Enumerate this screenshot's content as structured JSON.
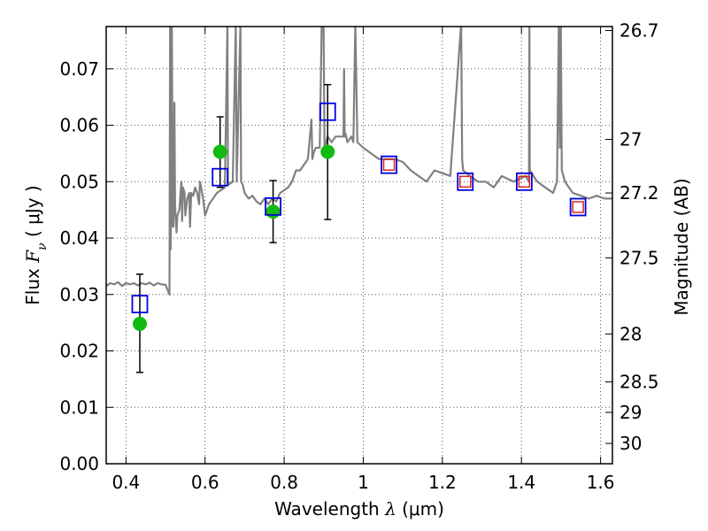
{
  "chart_data": {
    "type": "scatter",
    "xlabel": {
      "prefix": "Wavelength  ",
      "math": "λ",
      "suffix": " (μm)"
    },
    "ylabel": {
      "prefix": "Flux  ",
      "math": "F",
      "sub": "ν",
      "suffix": "  ( μJy )"
    },
    "y2label": "Magnitude (AB)",
    "xlim": [
      0.35,
      1.63
    ],
    "ylim": [
      0.0,
      0.0775
    ],
    "grid": true,
    "grid_style": "dotted",
    "x_ticks": [
      {
        "value": 0.4,
        "label": "0.4"
      },
      {
        "value": 0.6,
        "label": "0.6"
      },
      {
        "value": 0.8,
        "label": "0.8"
      },
      {
        "value": 1.0,
        "label": "1"
      },
      {
        "value": 1.2,
        "label": "1.2"
      },
      {
        "value": 1.4,
        "label": "1.4"
      },
      {
        "value": 1.6,
        "label": "1.6"
      }
    ],
    "y_ticks": [
      {
        "value": 0.0,
        "label": "0.00"
      },
      {
        "value": 0.01,
        "label": "0.01"
      },
      {
        "value": 0.02,
        "label": "0.02"
      },
      {
        "value": 0.03,
        "label": "0.03"
      },
      {
        "value": 0.04,
        "label": "0.04"
      },
      {
        "value": 0.05,
        "label": "0.05"
      },
      {
        "value": 0.06,
        "label": "0.06"
      },
      {
        "value": 0.07,
        "label": "0.07"
      }
    ],
    "y2_ticks": [
      {
        "label": "26.7",
        "flux": 0.0768
      },
      {
        "label": "27",
        "flux": 0.0575
      },
      {
        "label": "27.2",
        "flux": 0.048
      },
      {
        "label": "27.5",
        "flux": 0.0365
      },
      {
        "label": "28",
        "flux": 0.023
      },
      {
        "label": "28.5",
        "flux": 0.0145
      },
      {
        "label": "29",
        "flux": 0.0091
      },
      {
        "label": "30",
        "flux": 0.0036
      }
    ],
    "colors": {
      "spectrum": "#808080",
      "observed": "#11bb11",
      "model": "#0000dd",
      "model_inner": "#dd2222",
      "errorbar": "#000000",
      "grid": "#555555"
    },
    "series": [
      {
        "kind": "spectrum",
        "x": [
          0.35,
          0.36,
          0.37,
          0.38,
          0.39,
          0.4,
          0.41,
          0.42,
          0.43,
          0.44,
          0.45,
          0.46,
          0.47,
          0.48,
          0.49,
          0.5,
          0.51,
          0.5115,
          0.513,
          0.514,
          0.515,
          0.516,
          0.518,
          0.52,
          0.5225,
          0.524,
          0.526,
          0.528,
          0.53,
          0.535,
          0.54,
          0.542,
          0.544,
          0.548,
          0.55,
          0.555,
          0.56,
          0.562,
          0.565,
          0.57,
          0.575,
          0.58,
          0.585,
          0.587,
          0.59,
          0.595,
          0.6,
          0.61,
          0.62,
          0.63,
          0.64,
          0.65,
          0.6565,
          0.658,
          0.66,
          0.67,
          0.6775,
          0.68,
          0.6895,
          0.691,
          0.695,
          0.7,
          0.71,
          0.72,
          0.73,
          0.74,
          0.75,
          0.76,
          0.77,
          0.78,
          0.79,
          0.8,
          0.81,
          0.82,
          0.83,
          0.84,
          0.85,
          0.86,
          0.869,
          0.8715,
          0.874,
          0.88,
          0.89,
          0.895,
          0.8995,
          0.902,
          0.91,
          0.92,
          0.93,
          0.95,
          0.9515,
          0.953,
          0.955,
          0.96,
          0.97,
          0.975,
          0.98,
          0.985,
          1.0,
          1.02,
          1.04,
          1.06,
          1.08,
          1.1,
          1.12,
          1.14,
          1.16,
          1.18,
          1.2,
          1.22,
          1.2475,
          1.25,
          1.2525,
          1.27,
          1.29,
          1.31,
          1.33,
          1.35,
          1.38,
          1.41,
          1.419,
          1.42,
          1.421,
          1.44,
          1.46,
          1.48,
          1.49,
          1.4945,
          1.497,
          1.4995,
          1.502,
          1.51,
          1.52,
          1.53,
          1.55,
          1.57,
          1.59,
          1.61,
          1.63
        ],
        "y": [
          0.0315,
          0.032,
          0.0318,
          0.0322,
          0.0315,
          0.032,
          0.0318,
          0.032,
          0.0316,
          0.032,
          0.0318,
          0.0321,
          0.0316,
          0.032,
          0.0318,
          0.0317,
          0.03,
          0.078,
          0.038,
          0.045,
          0.042,
          0.078,
          0.046,
          0.042,
          0.064,
          0.046,
          0.043,
          0.041,
          0.044,
          0.045,
          0.05,
          0.043,
          0.049,
          0.048,
          0.044,
          0.047,
          0.048,
          0.042,
          0.048,
          0.0475,
          0.049,
          0.048,
          0.046,
          0.05,
          0.049,
          0.047,
          0.044,
          0.046,
          0.047,
          0.048,
          0.0485,
          0.049,
          0.078,
          0.05,
          0.0495,
          0.05,
          0.078,
          0.05,
          0.078,
          0.05,
          0.0495,
          0.048,
          0.047,
          0.0475,
          0.0465,
          0.046,
          0.047,
          0.046,
          0.047,
          0.0465,
          0.048,
          0.0485,
          0.049,
          0.05,
          0.052,
          0.052,
          0.053,
          0.054,
          0.061,
          0.054,
          0.055,
          0.056,
          0.056,
          0.078,
          0.078,
          0.056,
          0.058,
          0.057,
          0.058,
          0.058,
          0.07,
          0.058,
          0.0585,
          0.057,
          0.058,
          0.057,
          0.078,
          0.057,
          0.056,
          0.055,
          0.054,
          0.054,
          0.054,
          0.0535,
          0.052,
          0.051,
          0.05,
          0.052,
          0.0515,
          0.051,
          0.078,
          0.054,
          0.052,
          0.051,
          0.05,
          0.05,
          0.049,
          0.051,
          0.05,
          0.051,
          0.05,
          0.078,
          0.052,
          0.05,
          0.049,
          0.048,
          0.05,
          0.078,
          0.056,
          0.078,
          0.052,
          0.05,
          0.049,
          0.048,
          0.0475,
          0.047,
          0.0475,
          0.047,
          0.047
        ]
      },
      {
        "kind": "model",
        "x": [
          0.435,
          0.638,
          0.772,
          0.91,
          1.065,
          1.258,
          1.407,
          1.543
        ],
        "y": [
          0.0283,
          0.0508,
          0.0456,
          0.0624,
          0.053,
          0.05,
          0.05,
          0.0455
        ],
        "inner": [
          false,
          false,
          false,
          false,
          true,
          true,
          true,
          true
        ]
      },
      {
        "kind": "observed",
        "x": [
          0.435,
          0.638,
          0.772,
          0.91
        ],
        "y": [
          0.0248,
          0.0553,
          0.0447,
          0.0553
        ],
        "yerr_low": [
          0.0162,
          0.049,
          0.0392,
          0.0433
        ],
        "yerr_high": [
          0.0336,
          0.0615,
          0.0502,
          0.0672
        ]
      }
    ]
  }
}
